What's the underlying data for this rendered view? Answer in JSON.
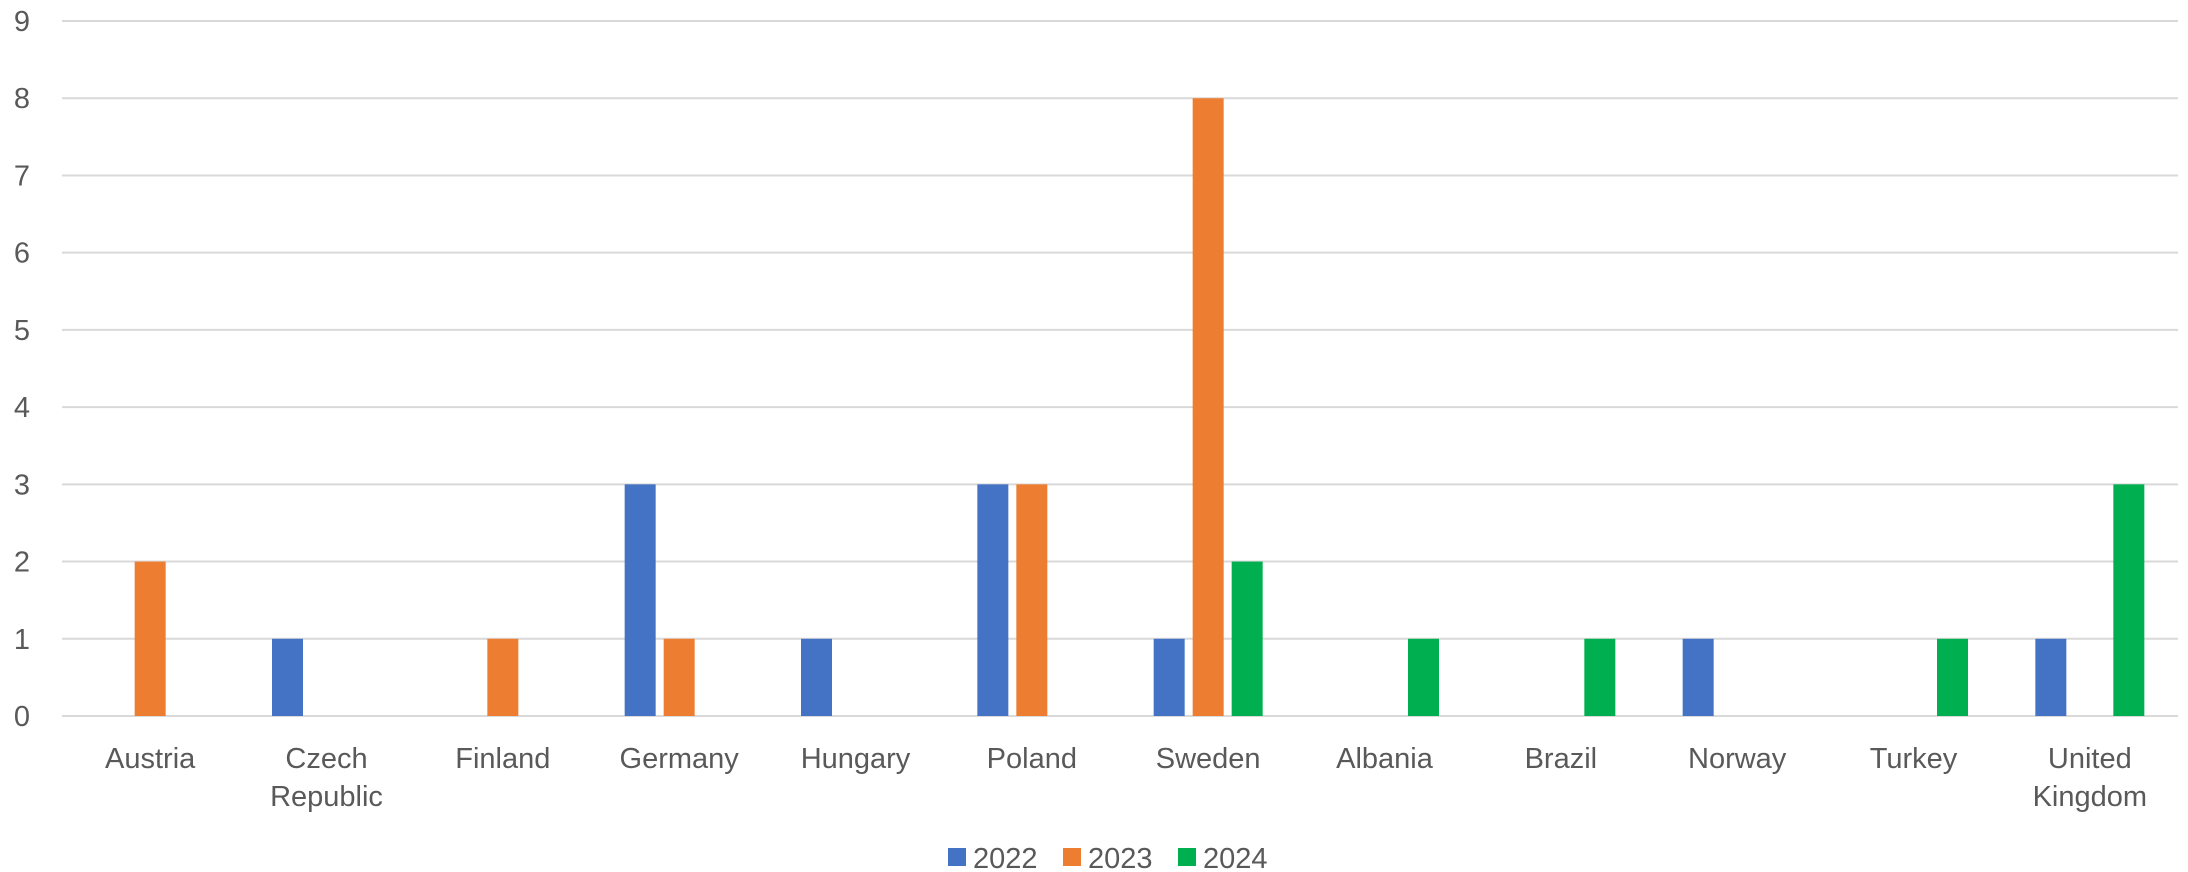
{
  "chart_data": {
    "type": "bar",
    "title": "",
    "xlabel": "",
    "ylabel": "",
    "ylim": [
      0,
      9
    ],
    "yticks": [
      0,
      1,
      2,
      3,
      4,
      5,
      6,
      7,
      8,
      9
    ],
    "grid": true,
    "legend_position": "bottom",
    "categories": [
      [
        "Austria"
      ],
      [
        "Czech",
        "Republic"
      ],
      [
        "Finland"
      ],
      [
        "Germany"
      ],
      [
        "Hungary"
      ],
      [
        "Poland"
      ],
      [
        "Sweden"
      ],
      [
        "Albania"
      ],
      [
        "Brazil"
      ],
      [
        "Norway"
      ],
      [
        "Turkey"
      ],
      [
        "United",
        "Kingdom"
      ]
    ],
    "series": [
      {
        "name": "2022",
        "color": "#4472c4",
        "values": [
          0,
          1,
          0,
          3,
          1,
          3,
          1,
          0,
          0,
          1,
          0,
          1
        ]
      },
      {
        "name": "2023",
        "color": "#ed7d31",
        "values": [
          2,
          0,
          1,
          1,
          0,
          3,
          8,
          0,
          0,
          0,
          0,
          0
        ]
      },
      {
        "name": "2024",
        "color": "#00b050",
        "values": [
          0,
          0,
          0,
          0,
          0,
          0,
          2,
          1,
          1,
          0,
          1,
          3
        ]
      }
    ]
  }
}
